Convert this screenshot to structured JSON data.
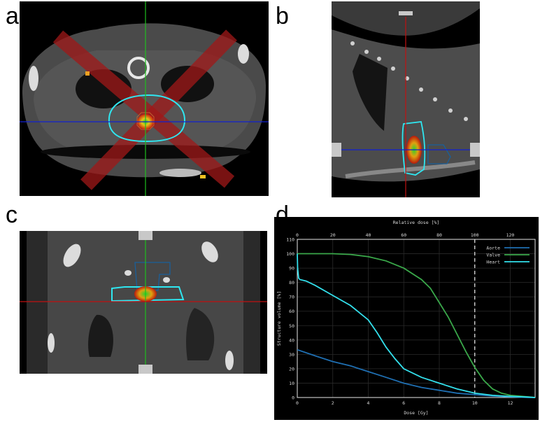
{
  "panels": {
    "a": {
      "label": "a"
    },
    "b": {
      "label": "b"
    },
    "c": {
      "label": "c"
    },
    "d": {
      "label": "d"
    }
  },
  "colors": {
    "crosshair_green": "#1fbf1f",
    "crosshair_blue": "#1020d0",
    "crosshair_red": "#c01010",
    "contour_cyan": "#2fe6f0",
    "contour_blue": "#1a5f9a",
    "beam_red": "#a01818",
    "plot_bg": "#000000"
  },
  "icons": [
    "crosshair-handle-icon"
  ],
  "chart_data": {
    "type": "line",
    "title": "",
    "xlabel": "Dose [Gy]",
    "x2label": "Relative dose [%]",
    "ylabel": "Structure volume [%]",
    "xlim": [
      0,
      13.4
    ],
    "x2lim": [
      0,
      134
    ],
    "ylim": [
      0,
      110
    ],
    "xticks": [
      "0",
      "2",
      "4",
      "6",
      "8",
      "10",
      "12"
    ],
    "x2ticks": [
      "0",
      "20",
      "40",
      "60",
      "80",
      "100",
      "120"
    ],
    "yticks": [
      "0",
      "10",
      "20",
      "30",
      "40",
      "50",
      "60",
      "70",
      "80",
      "90",
      "100",
      "110"
    ],
    "reference_line_x2": 100,
    "grid": true,
    "legend_position": "top-right",
    "series": [
      {
        "name": "Aorte",
        "color": "#1f6fb2",
        "x": [
          0,
          0.05,
          1,
          2,
          3,
          4,
          5,
          6,
          7,
          8,
          9,
          10,
          11,
          12,
          13,
          13.4
        ],
        "y": [
          33,
          33,
          29,
          25,
          22,
          18,
          14,
          10,
          7,
          5,
          3,
          2,
          1,
          0.5,
          0,
          0
        ]
      },
      {
        "name": "Valve",
        "color": "#3aa84a",
        "x": [
          0,
          1,
          2,
          3,
          4,
          5,
          6,
          7,
          7.5,
          8,
          8.5,
          9,
          9.5,
          10,
          10.5,
          11,
          11.5,
          12,
          13,
          13.4
        ],
        "y": [
          100,
          100,
          100,
          99.5,
          98,
          95,
          90,
          82,
          76,
          66,
          56,
          44,
          32,
          21,
          12,
          6,
          3,
          1.5,
          0.5,
          0
        ]
      },
      {
        "name": "Heart",
        "color": "#33e0ec",
        "x": [
          0,
          0.02,
          0.08,
          0.15,
          0.5,
          1,
          2,
          3,
          3.5,
          4,
          4.5,
          5,
          5.5,
          6,
          7,
          8,
          9,
          10,
          11,
          12,
          13,
          13.4
        ],
        "y": [
          100,
          90,
          83,
          82,
          81,
          78,
          71,
          64,
          59,
          54,
          45,
          35,
          27,
          20,
          14,
          10,
          6,
          3,
          1.5,
          0.8,
          0.3,
          0
        ]
      }
    ]
  }
}
